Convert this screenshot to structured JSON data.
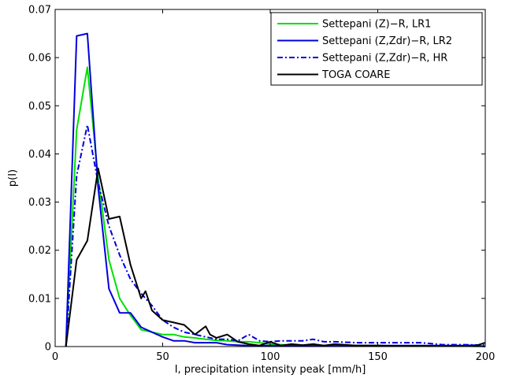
{
  "chart_data": {
    "type": "line",
    "xlabel": "I, precipitation intensity peak [mm/h]",
    "ylabel": "p(I)",
    "xlim": [
      0,
      200
    ],
    "ylim": [
      0,
      0.07
    ],
    "x_ticks": [
      0,
      50,
      100,
      150,
      200
    ],
    "y_ticks": [
      0,
      0.01,
      0.02,
      0.03,
      0.04,
      0.05,
      0.06,
      0.07
    ],
    "x_tick_labels": [
      "0",
      "50",
      "100",
      "150",
      "200"
    ],
    "y_tick_labels": [
      "0",
      "0.01",
      "0.02",
      "0.03",
      "0.04",
      "0.05",
      "0.06",
      "0.07"
    ],
    "grid": false,
    "legend_position": "top-right",
    "series": [
      {
        "name": "Settepani (Z)−R, LR1",
        "color": "#00e000",
        "style": "solid",
        "x": [
          5,
          10,
          15,
          20,
          25,
          30,
          35,
          40,
          45,
          50,
          55,
          60,
          65,
          70,
          75,
          80,
          85,
          90,
          95,
          100,
          105,
          110,
          120,
          130,
          140,
          150,
          160,
          170,
          180,
          190,
          200
        ],
        "y": [
          0,
          0.045,
          0.058,
          0.035,
          0.018,
          0.01,
          0.0065,
          0.0035,
          0.003,
          0.0025,
          0.0025,
          0.002,
          0.0018,
          0.0015,
          0.0013,
          0.0012,
          0.001,
          0.001,
          0.0008,
          0.0005,
          0.0004,
          0.0003,
          0.0003,
          0.0002,
          0.0002,
          0.0002,
          0.0001,
          0.0001,
          0.0001,
          0.0001,
          0
        ]
      },
      {
        "name": "Settepani (Z,Zdr)−R, LR2",
        "color": "#0000dd",
        "style": "solid",
        "x": [
          5,
          10,
          15,
          20,
          25,
          30,
          35,
          40,
          45,
          50,
          55,
          60,
          65,
          70,
          75,
          80,
          85,
          90,
          95,
          100,
          110,
          120,
          130,
          140,
          150,
          160,
          170,
          180,
          190,
          195,
          200
        ],
        "y": [
          0,
          0.0645,
          0.065,
          0.033,
          0.012,
          0.007,
          0.007,
          0.004,
          0.003,
          0.002,
          0.0012,
          0.0012,
          0.0008,
          0.0008,
          0.0008,
          0.0004,
          0.0003,
          0.0002,
          0.0002,
          0.0002,
          0.0002,
          0.0002,
          0.0002,
          0.0002,
          0.0002,
          0.0002,
          0.0002,
          0.0002,
          0.0002,
          0.0003,
          0
        ]
      },
      {
        "name": "Settepani (Z,Zdr)−R, HR",
        "color": "#0000dd",
        "style": "dashdot",
        "x": [
          5,
          10,
          15,
          20,
          25,
          30,
          35,
          40,
          45,
          50,
          55,
          60,
          65,
          70,
          75,
          80,
          85,
          90,
          95,
          100,
          105,
          110,
          115,
          120,
          125,
          130,
          140,
          150,
          160,
          170,
          180,
          190,
          200
        ],
        "y": [
          0,
          0.0355,
          0.046,
          0.034,
          0.025,
          0.019,
          0.014,
          0.011,
          0.0085,
          0.0055,
          0.004,
          0.003,
          0.0025,
          0.002,
          0.0015,
          0.0015,
          0.0012,
          0.0025,
          0.0012,
          0.001,
          0.0012,
          0.0012,
          0.0012,
          0.0015,
          0.001,
          0.001,
          0.0008,
          0.0008,
          0.0008,
          0.0008,
          0.0004,
          0.0004,
          0.0003
        ]
      },
      {
        "name": "TOGA COARE",
        "color": "#000000",
        "style": "solid",
        "x": [
          5,
          10,
          15,
          20,
          25,
          30,
          35,
          40,
          42,
          45,
          50,
          55,
          60,
          65,
          70,
          72,
          75,
          80,
          85,
          90,
          95,
          100,
          105,
          110,
          115,
          120,
          125,
          130,
          140,
          150,
          160,
          170,
          180,
          190,
          195,
          200
        ],
        "y": [
          0,
          0.018,
          0.022,
          0.037,
          0.0265,
          0.027,
          0.017,
          0.01,
          0.0115,
          0.0075,
          0.0055,
          0.005,
          0.0045,
          0.0025,
          0.0042,
          0.0025,
          0.0018,
          0.0025,
          0.001,
          0.0005,
          0.0002,
          0.001,
          0.0002,
          0.0005,
          0.0003,
          0.0005,
          0.0002,
          0.0005,
          0.0002,
          0.0002,
          0.0001,
          0.0001,
          0.0001,
          0.0001,
          0.0001,
          0.0008
        ]
      }
    ]
  }
}
